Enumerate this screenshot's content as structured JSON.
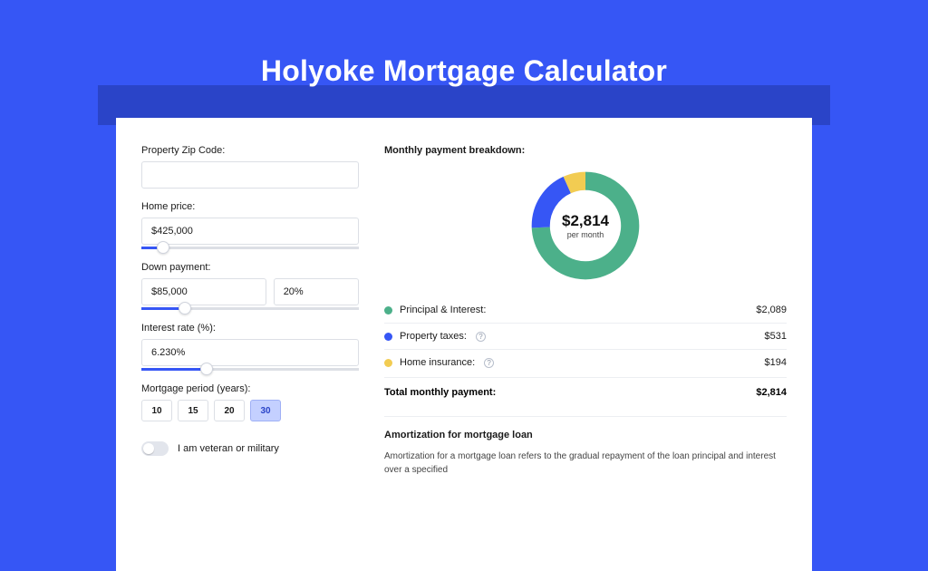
{
  "colors": {
    "page_bg": "#3656f5",
    "darkband": "#2a44c8",
    "card_bg": "#ffffff",
    "border": "#dcdfe5",
    "text": "#1a1a1a",
    "slider_fill": "#3656f5"
  },
  "title": "Holyoke Mortgage Calculator",
  "form": {
    "zip": {
      "label": "Property Zip Code:",
      "value": ""
    },
    "home_price": {
      "label": "Home price:",
      "value": "$425,000",
      "slider_pct": 10
    },
    "down_payment": {
      "label": "Down payment:",
      "amount": "$85,000",
      "percent": "20%",
      "slider_pct": 20
    },
    "interest_rate": {
      "label": "Interest rate (%):",
      "value": "6.230%",
      "slider_pct": 30
    },
    "period": {
      "label": "Mortgage period (years):",
      "options": [
        "10",
        "15",
        "20",
        "30"
      ],
      "selected": "30"
    },
    "veteran": {
      "label": "I am veteran or military",
      "on": false
    }
  },
  "breakdown": {
    "title": "Monthly payment breakdown:",
    "center_amount": "$2,814",
    "center_sub": "per month",
    "segments": [
      {
        "key": "pi",
        "label": "Principal & Interest:",
        "value": "$2,089",
        "amount": 2089,
        "color": "#4cb08a"
      },
      {
        "key": "tax",
        "label": "Property taxes:",
        "value": "$531",
        "amount": 531,
        "color": "#3656f5",
        "info": true
      },
      {
        "key": "ins",
        "label": "Home insurance:",
        "value": "$194",
        "amount": 194,
        "color": "#f2cc52",
        "info": true
      }
    ],
    "total_label": "Total monthly payment:",
    "total_value": "$2,814"
  },
  "amortization": {
    "title": "Amortization for mortgage loan",
    "body": "Amortization for a mortgage loan refers to the gradual repayment of the loan principal and interest over a specified"
  }
}
